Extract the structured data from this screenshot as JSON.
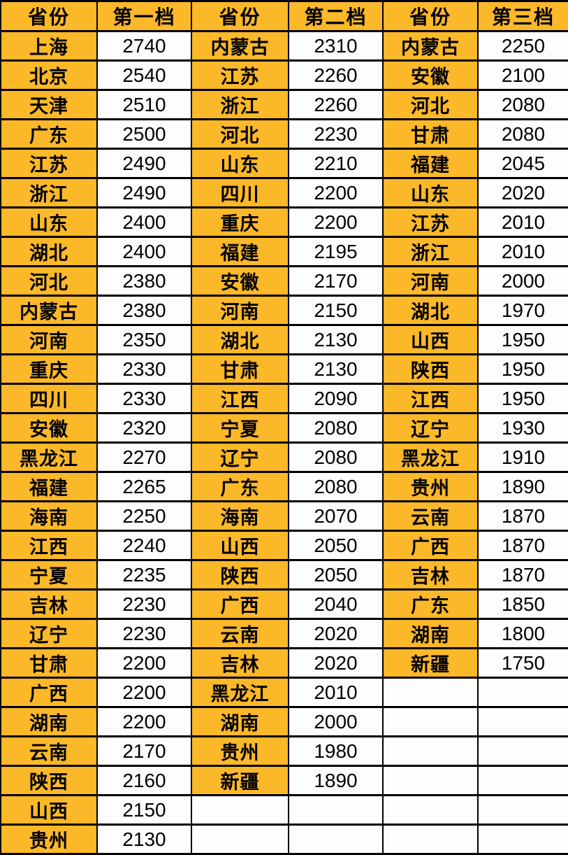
{
  "colors": {
    "accent_yellow": "#FBB829",
    "cell_white": "#FDFDFD",
    "border_black": "#000000",
    "text_black": "#000000"
  },
  "chart_data": {
    "type": "table",
    "headers": [
      "省份",
      "第一档",
      "省份",
      "第二档",
      "省份",
      "第三档"
    ],
    "rows": [
      [
        "上海",
        "2740",
        "内蒙古",
        "2310",
        "内蒙古",
        "2250"
      ],
      [
        "北京",
        "2540",
        "江苏",
        "2260",
        "安徽",
        "2100"
      ],
      [
        "天津",
        "2510",
        "浙江",
        "2260",
        "河北",
        "2080"
      ],
      [
        "广东",
        "2500",
        "河北",
        "2230",
        "甘肃",
        "2080"
      ],
      [
        "江苏",
        "2490",
        "山东",
        "2210",
        "福建",
        "2045"
      ],
      [
        "浙江",
        "2490",
        "四川",
        "2200",
        "山东",
        "2020"
      ],
      [
        "山东",
        "2400",
        "重庆",
        "2200",
        "江苏",
        "2010"
      ],
      [
        "湖北",
        "2400",
        "福建",
        "2195",
        "浙江",
        "2010"
      ],
      [
        "河北",
        "2380",
        "安徽",
        "2170",
        "河南",
        "2000"
      ],
      [
        "内蒙古",
        "2380",
        "河南",
        "2150",
        "湖北",
        "1970"
      ],
      [
        "河南",
        "2350",
        "湖北",
        "2130",
        "山西",
        "1950"
      ],
      [
        "重庆",
        "2330",
        "甘肃",
        "2130",
        "陕西",
        "1950"
      ],
      [
        "四川",
        "2330",
        "江西",
        "2090",
        "江西",
        "1950"
      ],
      [
        "安徽",
        "2320",
        "宁夏",
        "2080",
        "辽宁",
        "1930"
      ],
      [
        "黑龙江",
        "2270",
        "辽宁",
        "2080",
        "黑龙江",
        "1910"
      ],
      [
        "福建",
        "2265",
        "广东",
        "2080",
        "贵州",
        "1890"
      ],
      [
        "海南",
        "2250",
        "海南",
        "2070",
        "云南",
        "1870"
      ],
      [
        "江西",
        "2240",
        "山西",
        "2050",
        "广西",
        "1870"
      ],
      [
        "宁夏",
        "2235",
        "陕西",
        "2050",
        "吉林",
        "1870"
      ],
      [
        "吉林",
        "2230",
        "广西",
        "2040",
        "广东",
        "1850"
      ],
      [
        "辽宁",
        "2230",
        "云南",
        "2020",
        "湖南",
        "1800"
      ],
      [
        "甘肃",
        "2200",
        "吉林",
        "2020",
        "新疆",
        "1750"
      ],
      [
        "广西",
        "2200",
        "黑龙江",
        "2010",
        "",
        ""
      ],
      [
        "湖南",
        "2200",
        "湖南",
        "2000",
        "",
        ""
      ],
      [
        "云南",
        "2170",
        "贵州",
        "1980",
        "",
        ""
      ],
      [
        "陕西",
        "2160",
        "新疆",
        "1890",
        "",
        ""
      ],
      [
        "山西",
        "2150",
        "",
        "",
        "",
        ""
      ],
      [
        "贵州",
        "2130",
        "",
        "",
        "",
        ""
      ]
    ]
  }
}
